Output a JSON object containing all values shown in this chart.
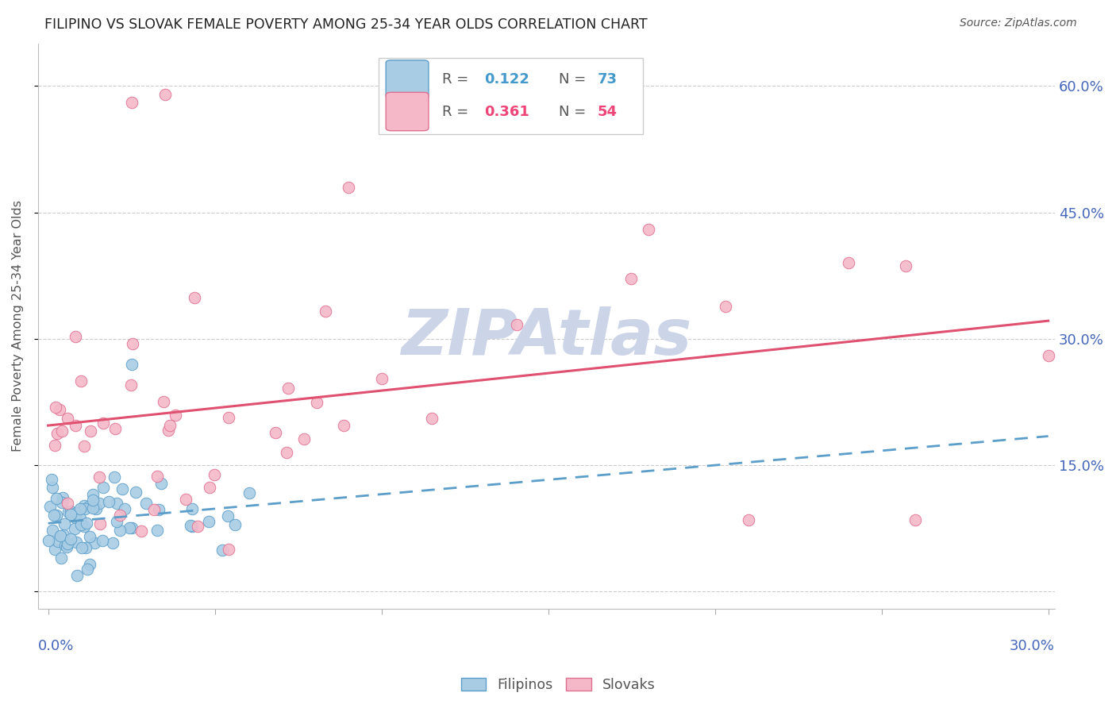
{
  "title": "FILIPINO VS SLOVAK FEMALE POVERTY AMONG 25-34 YEAR OLDS CORRELATION CHART",
  "source": "Source: ZipAtlas.com",
  "ylabel": "Female Poverty Among 25-34 Year Olds",
  "xlim": [
    0.0,
    0.3
  ],
  "ylim": [
    -0.02,
    0.65
  ],
  "ytick_positions": [
    0.0,
    0.15,
    0.3,
    0.45,
    0.6
  ],
  "ytick_labels": [
    "",
    "15.0%",
    "30.0%",
    "45.0%",
    "60.0%"
  ],
  "xtick_left_label": "0.0%",
  "xtick_right_label": "30.0%",
  "legend_r_filipino": "R = 0.122",
  "legend_n_filipino": "N = 73",
  "legend_r_slovak": "R = 0.361",
  "legend_n_slovak": "N = 54",
  "filipino_fill": "#a8cce4",
  "filipino_edge": "#5b9ec9",
  "slovak_fill": "#f5b8c8",
  "slovak_edge": "#e07090",
  "trendline_filipino": "#5b9ec9",
  "trendline_slovak": "#e05070",
  "watermark_color": "#ccd5e8",
  "background": "#ffffff",
  "title_color": "#222222",
  "source_color": "#555555",
  "ylabel_color": "#555555",
  "axis_tick_color": "#4466bb",
  "grid_color": "#cccccc",
  "legend_r_color_fil": "#4499cc",
  "legend_n_color_fil": "#4499cc",
  "legend_r_color_slo": "#ee4477",
  "legend_n_color_slo": "#ee4477"
}
